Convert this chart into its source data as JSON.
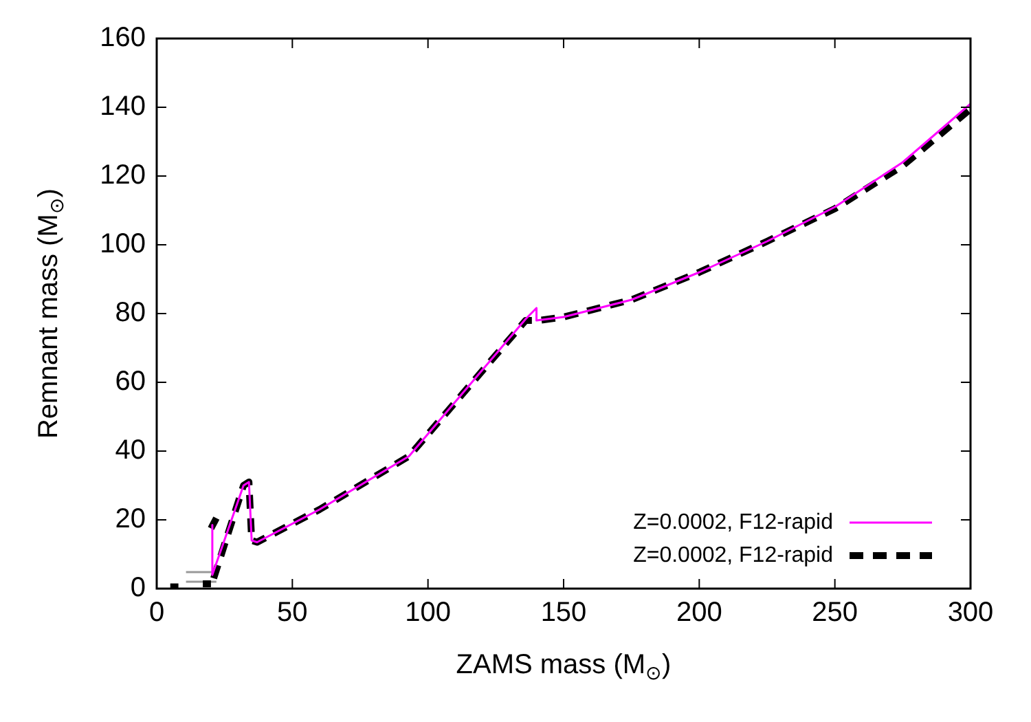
{
  "chart_data": {
    "type": "line",
    "xlabel": "ZAMS mass (M$_{⊙}$)",
    "ylabel": "Remnant mass (M$_{⊙}$)",
    "xlim": [
      0,
      300
    ],
    "xticks": [
      0,
      50,
      100,
      150,
      200,
      250,
      300
    ],
    "ylim": [
      0,
      160
    ],
    "yticks": [
      0,
      20,
      40,
      60,
      80,
      100,
      120,
      140,
      160
    ],
    "legend": "bottom right",
    "marker": "none",
    "series": [
      {
        "name": "Z=0.0002, F12-rapid",
        "color": "#ff00ff",
        "line_style": "solid",
        "x": [
          20.5,
          20.5,
          32,
          34,
          35,
          37,
          60,
          93,
          136,
          140,
          140,
          150,
          175,
          200,
          225,
          250,
          275,
          300
        ],
        "values": [
          18.5,
          4,
          30,
          31,
          14,
          13.5,
          23,
          38.5,
          78.4,
          81.6,
          78,
          79,
          84,
          92,
          101,
          111,
          124,
          141
        ]
      },
      {
        "name": "Z=0.0002, F12-rapid",
        "color": "#000000",
        "line_style": "dashed",
        "x": [
          5,
          8,
          null,
          17,
          20,
          null,
          20,
          22,
          null,
          21,
          32,
          34,
          35,
          37,
          60,
          93,
          136,
          141,
          150,
          175,
          200,
          225,
          250,
          275,
          300
        ],
        "values": [
          0.5,
          0.5,
          null,
          1.4,
          1.4,
          null,
          17.5,
          20.5,
          null,
          3,
          30,
          31,
          14,
          13.5,
          23,
          38.5,
          78,
          78,
          79,
          84,
          92,
          101,
          110.5,
          123,
          139.5
        ]
      },
      {
        "color": "#999999",
        "line_style": "solid",
        "x": [
          10.8,
          22
        ],
        "values": [
          4.8,
          4.8
        ]
      },
      {
        "color": "#999999",
        "line_style": "solid",
        "x": [
          10.8,
          22
        ],
        "values": [
          2,
          2
        ]
      }
    ]
  }
}
